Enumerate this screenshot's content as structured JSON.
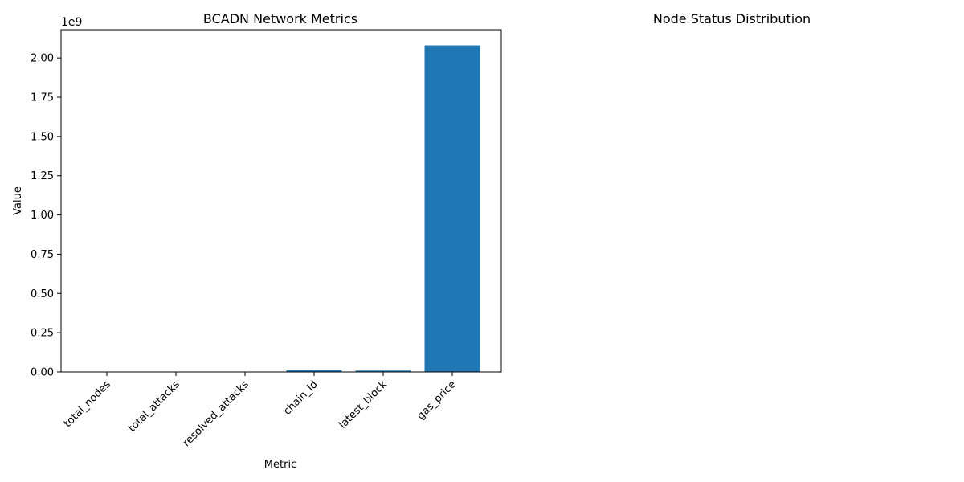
{
  "chart_data": [
    {
      "type": "bar",
      "title": "BCADN Network Metrics",
      "xlabel": "Metric",
      "ylabel": "Value",
      "offset_text": "1e9",
      "categories": [
        "total_nodes",
        "total_attacks",
        "resolved_attacks",
        "chain_id",
        "latest_block",
        "gas_price"
      ],
      "values": [
        3,
        0,
        0,
        11155111,
        8950000,
        2080000000
      ],
      "ylim": [
        0,
        2180000000
      ],
      "yticks": [
        0,
        250000000,
        500000000,
        750000000,
        1000000000,
        1250000000,
        1500000000,
        1750000000,
        2000000000
      ],
      "ytick_labels": [
        "0.00",
        "0.25",
        "0.50",
        "0.75",
        "1.00",
        "1.25",
        "1.50",
        "1.75",
        "2.00"
      ],
      "bar_color": "#1f77b4",
      "grid": false,
      "legend": "none"
    },
    {
      "type": "pie",
      "title": "Node Status Distribution",
      "categories": [],
      "values": []
    }
  ]
}
